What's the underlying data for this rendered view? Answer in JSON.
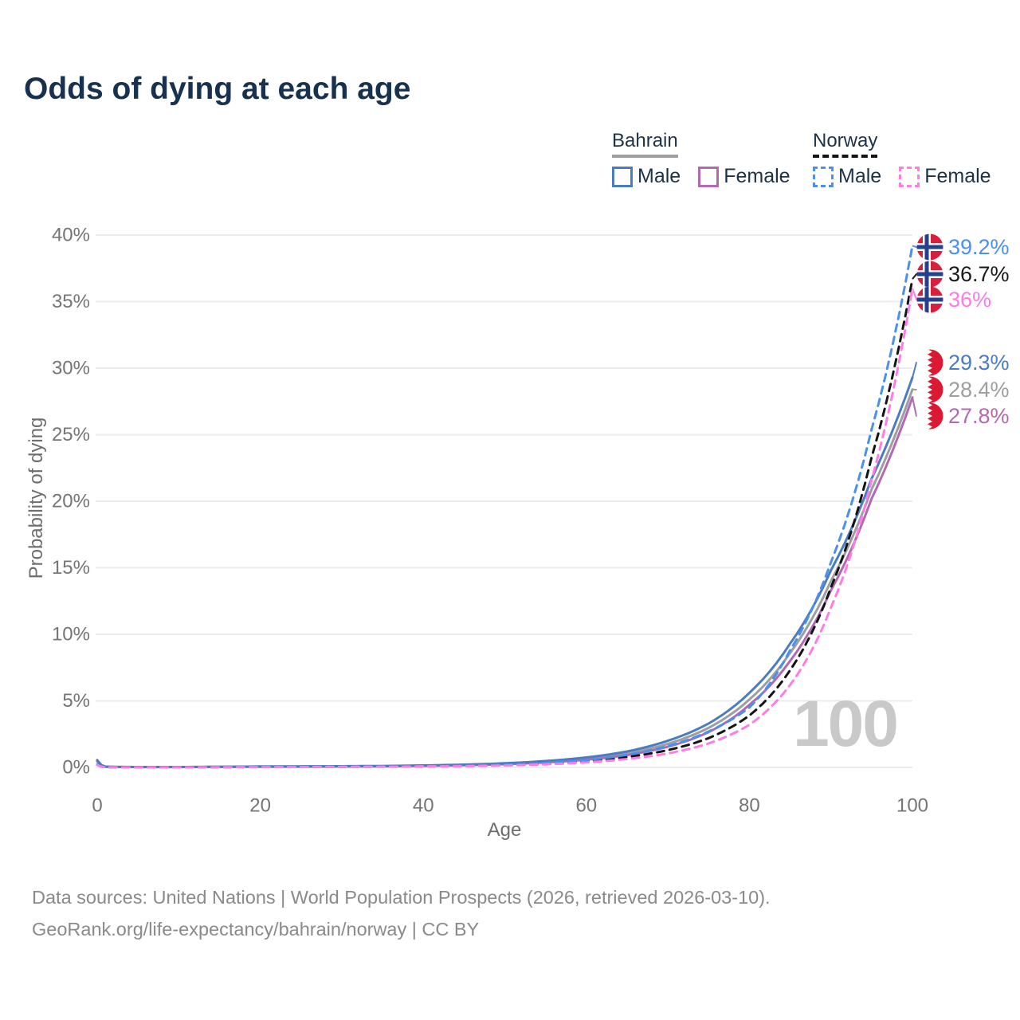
{
  "title": "Odds of dying at each age",
  "legend": {
    "groups": [
      {
        "name": "Bahrain",
        "line_style": "solid",
        "line_color": "#9e9e9e",
        "items": [
          {
            "label": "Male",
            "color": "#4a7cc2",
            "style": "solid"
          },
          {
            "label": "Female",
            "color": "#b269b2",
            "style": "solid"
          }
        ]
      },
      {
        "name": "Norway",
        "line_style": "dashed",
        "line_color": "#141414",
        "items": [
          {
            "label": "Male",
            "color": "#4a90ec",
            "style": "dashed"
          },
          {
            "label": "Female",
            "color": "#ff7ce6",
            "style": "dashed"
          }
        ]
      }
    ]
  },
  "axes": {
    "x": {
      "title": "Age",
      "tick_values": [
        0,
        20,
        40,
        60,
        80,
        100
      ],
      "min": 0,
      "max": 100
    },
    "y": {
      "title": "Probability of dying",
      "tick_values": [
        0,
        5,
        10,
        15,
        20,
        25,
        30,
        35,
        40
      ],
      "tick_suffix": "%",
      "min": 0,
      "max": 40
    }
  },
  "hover": {
    "age_label": "100"
  },
  "chart_data": {
    "type": "line",
    "title": "Odds of dying at each age",
    "xlabel": "Age",
    "ylabel": "Probability of dying",
    "y_unit": "percent",
    "xlim": [
      0,
      100
    ],
    "ylim": [
      0,
      40
    ],
    "grid": "horizontal",
    "x": [
      0,
      1,
      2,
      5,
      10,
      15,
      20,
      25,
      30,
      35,
      40,
      45,
      50,
      55,
      60,
      65,
      70,
      75,
      80,
      85,
      90,
      95,
      100
    ],
    "series": [
      {
        "name": "Bahrain total",
        "country": "Bahrain",
        "sex": "total",
        "color": "#9e9e9e",
        "dash": false,
        "values": [
          0.5,
          0.055,
          0.037,
          0.028,
          0.028,
          0.042,
          0.057,
          0.067,
          0.077,
          0.095,
          0.13,
          0.18,
          0.27,
          0.42,
          0.66,
          1.06,
          1.77,
          2.97,
          5.1,
          8.6,
          14.0,
          20.9,
          28.4
        ],
        "end_label": "28.4%"
      },
      {
        "name": "Bahrain Female",
        "country": "Bahrain",
        "sex": "female",
        "color": "#b269b2",
        "dash": false,
        "values": [
          0.45,
          0.05,
          0.034,
          0.026,
          0.026,
          0.035,
          0.045,
          0.055,
          0.065,
          0.08,
          0.11,
          0.16,
          0.24,
          0.37,
          0.58,
          0.93,
          1.55,
          2.65,
          4.7,
          8.0,
          13.3,
          20.2,
          27.8
        ],
        "end_label": "27.8%"
      },
      {
        "name": "Bahrain Male",
        "country": "Bahrain",
        "sex": "male",
        "color": "#4a7cc2",
        "dash": false,
        "values": [
          0.55,
          0.06,
          0.04,
          0.03,
          0.03,
          0.05,
          0.07,
          0.08,
          0.09,
          0.11,
          0.15,
          0.21,
          0.31,
          0.48,
          0.75,
          1.2,
          2.0,
          3.3,
          5.6,
          9.3,
          14.8,
          21.7,
          29.3
        ],
        "end_label": "29.3%"
      },
      {
        "name": "Norway total",
        "country": "Norway",
        "sex": "total",
        "color": "#141414",
        "dash": true,
        "values": [
          0.2,
          0.018,
          0.011,
          0.008,
          0.008,
          0.016,
          0.03,
          0.04,
          0.05,
          0.06,
          0.08,
          0.11,
          0.17,
          0.28,
          0.46,
          0.78,
          1.3,
          2.2,
          3.9,
          7.3,
          13.5,
          23.3,
          36.7
        ],
        "end_label": "36.7%"
      },
      {
        "name": "Norway Male",
        "country": "Norway",
        "sex": "male",
        "color": "#4a90ec",
        "dash": true,
        "values": [
          0.22,
          0.02,
          0.012,
          0.009,
          0.009,
          0.02,
          0.04,
          0.05,
          0.06,
          0.07,
          0.09,
          0.13,
          0.2,
          0.33,
          0.55,
          0.95,
          1.6,
          2.7,
          4.5,
          8.8,
          15.4,
          25.4,
          39.2
        ],
        "end_label": "39.2%"
      },
      {
        "name": "Norway Female",
        "country": "Norway",
        "sex": "female",
        "color": "#ff7ce6",
        "dash": true,
        "values": [
          0.18,
          0.016,
          0.01,
          0.007,
          0.007,
          0.012,
          0.02,
          0.03,
          0.04,
          0.05,
          0.07,
          0.09,
          0.14,
          0.23,
          0.38,
          0.63,
          1.05,
          1.8,
          3.2,
          6.2,
          12.0,
          21.6,
          36.0
        ],
        "end_label": "36%"
      }
    ]
  },
  "end_labels": [
    {
      "text": "39.2%",
      "flag": "norway",
      "color": "#4a90ec",
      "value": 39.2
    },
    {
      "text": "36.7%",
      "flag": "norway",
      "color": "#1a1a1a",
      "value": 36.7
    },
    {
      "text": "36%",
      "flag": "norway",
      "color": "#ff7ce6",
      "value": 36.0
    },
    {
      "text": "29.3%",
      "flag": "bahrain",
      "color": "#4a7cc2",
      "value": 29.3
    },
    {
      "text": "28.4%",
      "flag": "bahrain",
      "color": "#9e9e9e",
      "value": 28.4
    },
    {
      "text": "27.8%",
      "flag": "bahrain",
      "color": "#b269b2",
      "value": 27.8
    }
  ],
  "flag_colors": {
    "norway": {
      "red": "#d8203c",
      "blue": "#26418c",
      "white": "#ffffff"
    },
    "bahrain": {
      "red": "#da1a33",
      "white": "#ffffff"
    }
  },
  "footer": {
    "line1": "Data sources: United Nations | World Population Prospects (2026, retrieved 2026-03-10).",
    "line2": "GeoRank.org/life-expectancy/bahrain/norway | CC BY"
  }
}
